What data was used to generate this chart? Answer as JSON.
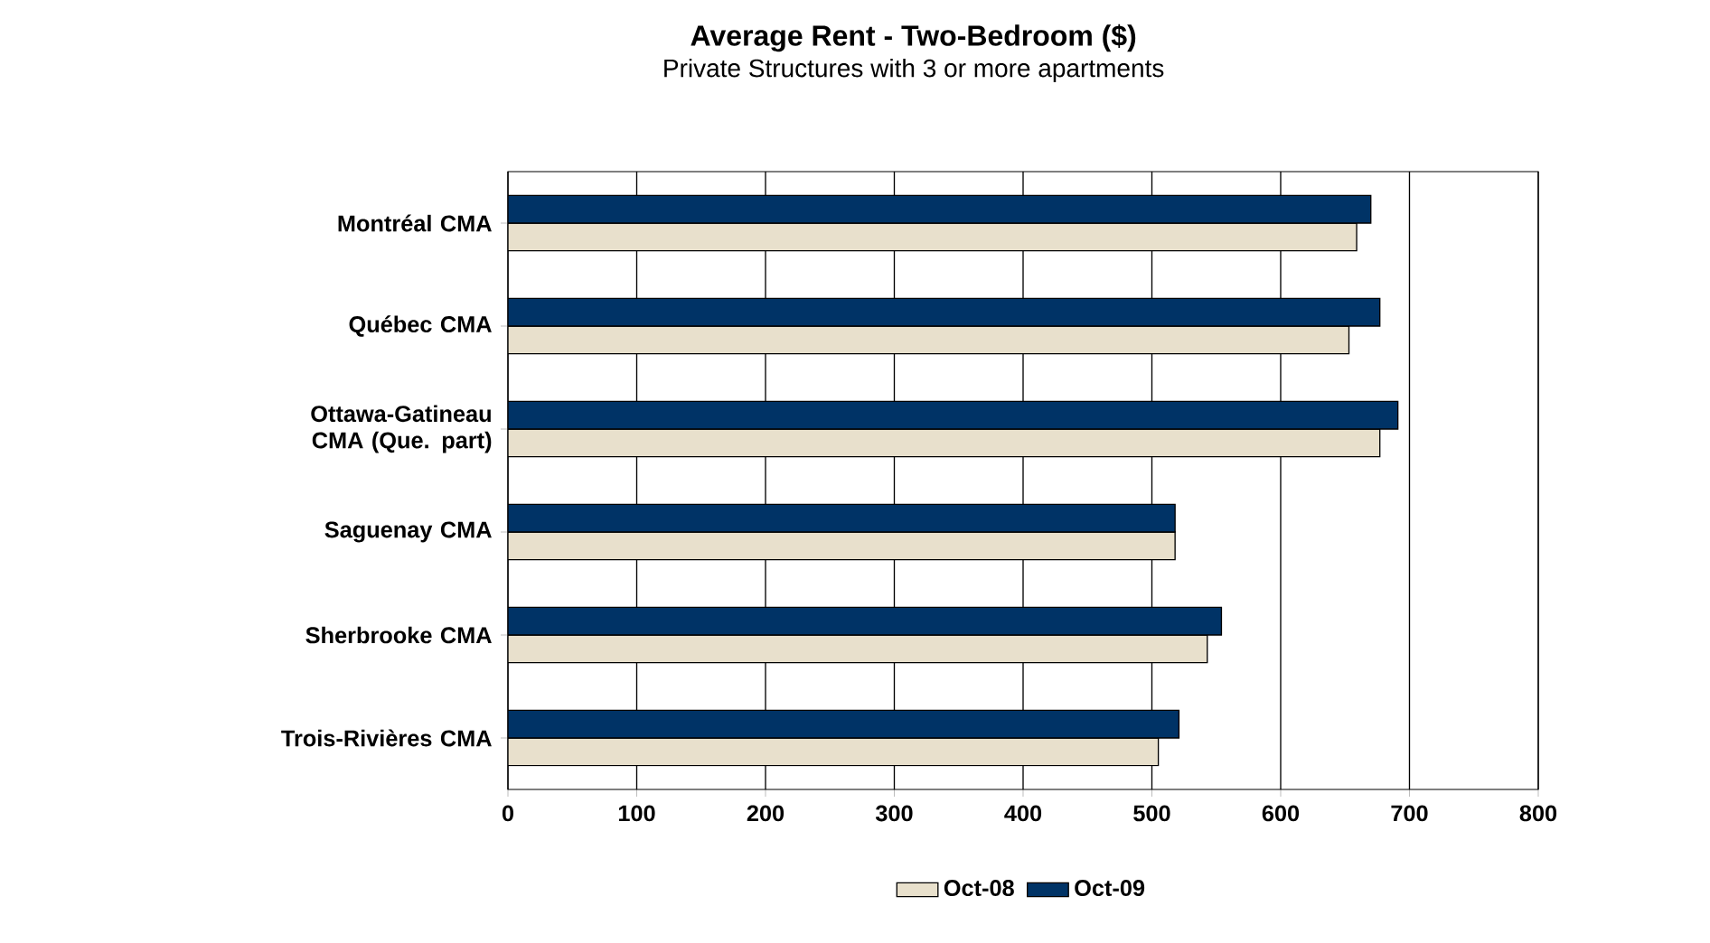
{
  "chart_data": {
    "type": "bar",
    "orientation": "horizontal",
    "title": "Average Rent - Two-Bedroom ($)",
    "subtitle": "Private Structures with 3 or more apartments",
    "categories": [
      "Montréal CMA",
      "Québec CMA",
      "Ottawa-Gatineau CMA (Que. part)",
      "Saguenay CMA",
      "Sherbrooke CMA",
      "Trois-Rivières CMA"
    ],
    "series": [
      {
        "name": "Oct-08",
        "color": "#e8e0cc",
        "values": [
          659,
          653,
          677,
          518,
          543,
          505
        ]
      },
      {
        "name": "Oct-09",
        "color": "#003366",
        "values": [
          670,
          677,
          691,
          518,
          554,
          521
        ]
      }
    ],
    "xlim": [
      0,
      800
    ],
    "xticks": [
      0,
      100,
      200,
      300,
      400,
      500,
      600,
      700,
      800
    ],
    "grid": "x",
    "legend": "bottom"
  }
}
